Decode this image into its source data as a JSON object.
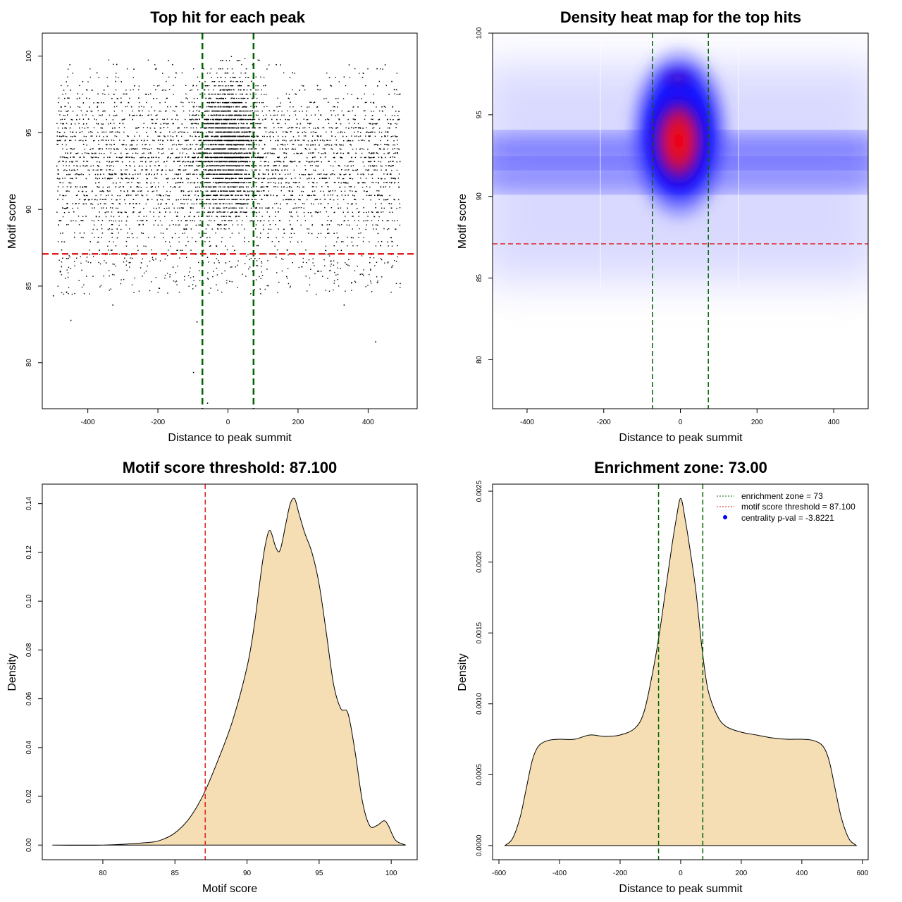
{
  "chart_data": [
    {
      "id": "p1",
      "type": "scatter",
      "title": "Top hit for each peak",
      "xlabel": "Distance to peak summit",
      "ylabel": "Motif score",
      "xlim": [
        -530,
        540
      ],
      "ylim": [
        77.0,
        101.5
      ],
      "xticks": [
        "-400",
        "-200",
        "0",
        "200",
        "400"
      ],
      "yticks": [
        "80",
        "85",
        "90",
        "95",
        "100"
      ],
      "grid": false,
      "points_description": "dense cloud of top hits; x uniform over [-490, 490], scores mostly 87-100, denser near distance 0",
      "sample_points": [
        {
          "x": -450,
          "y": 82.8
        },
        {
          "x": -90,
          "y": 82.7
        },
        {
          "x": -100,
          "y": 79.4
        },
        {
          "x": -60,
          "y": 77.4
        },
        {
          "x": 420,
          "y": 81.4
        },
        {
          "x": -330,
          "y": 83.8
        },
        {
          "x": 330,
          "y": 83.8
        },
        {
          "x": -500,
          "y": 84.4
        },
        {
          "x": 490,
          "y": 85.2
        }
      ],
      "reference_lines": [
        {
          "orientation": "vertical",
          "value": -73,
          "color": "#006400",
          "style": "dashed"
        },
        {
          "orientation": "vertical",
          "value": 73,
          "color": "#006400",
          "style": "dashed"
        },
        {
          "orientation": "horizontal",
          "value": 87.1,
          "color": "#dd2222",
          "style": "dashed"
        }
      ]
    },
    {
      "id": "p2",
      "type": "heatmap",
      "title": "Density heat map for the top hits",
      "xlabel": "Distance to peak summit",
      "ylabel": "Motif score",
      "xlim": [
        -490,
        490
      ],
      "ylim": [
        77.0,
        100.0
      ],
      "xticks": [
        "-400",
        "-200",
        "0",
        "200",
        "400"
      ],
      "yticks": [
        "80",
        "85",
        "90",
        "95",
        "100"
      ],
      "grid": false,
      "color_scale": [
        "#ffffff",
        "#0000ff",
        "#ff0000"
      ],
      "density_description": "white-to-blue background over scores 85-100 at all distances, bands near 91.5 and 93; strong red core near distance 0, score 93.5",
      "reference_lines": [
        {
          "orientation": "vertical",
          "value": -73,
          "color": "#006400",
          "style": "dashed"
        },
        {
          "orientation": "vertical",
          "value": 73,
          "color": "#006400",
          "style": "dashed"
        },
        {
          "orientation": "horizontal",
          "value": 87.1,
          "color": "#dd2222",
          "style": "dashed"
        }
      ]
    },
    {
      "id": "p3",
      "type": "area",
      "title": "Motif score threshold: 87.100",
      "xlabel": "Motif score",
      "ylabel": "Density",
      "xlim": [
        75.8,
        101.8
      ],
      "ylim": [
        -0.006,
        0.148
      ],
      "xticks": [
        "80",
        "85",
        "90",
        "95",
        "100"
      ],
      "yticks": [
        "0.00",
        "0.02",
        "0.04",
        "0.06",
        "0.08",
        "0.10",
        "0.12",
        "0.14"
      ],
      "grid": false,
      "fill": "#f5deb3",
      "x": [
        76.5,
        80,
        83,
        84,
        85,
        86,
        87,
        88,
        89,
        90,
        90.5,
        91,
        91.3,
        91.6,
        92,
        92.3,
        92.7,
        93,
        93.3,
        93.6,
        94,
        94.5,
        95,
        95.5,
        96,
        96.5,
        97,
        97.5,
        98,
        98.5,
        99,
        99.5,
        99.8,
        100.3,
        101
      ],
      "values": [
        0,
        0,
        0.001,
        0.002,
        0.005,
        0.011,
        0.021,
        0.035,
        0.051,
        0.073,
        0.09,
        0.113,
        0.124,
        0.129,
        0.122,
        0.121,
        0.132,
        0.14,
        0.142,
        0.136,
        0.128,
        0.12,
        0.107,
        0.087,
        0.066,
        0.056,
        0.054,
        0.038,
        0.018,
        0.008,
        0.008,
        0.01,
        0.008,
        0.002,
        0
      ],
      "reference_lines": [
        {
          "orientation": "vertical",
          "value": 87.1,
          "color": "#dd2222",
          "style": "dashed"
        }
      ]
    },
    {
      "id": "p4",
      "type": "area",
      "title": "Enrichment zone: 73.00",
      "xlabel": "Distance to peak summit",
      "ylabel": "Density",
      "xlim": [
        -621,
        619
      ],
      "ylim": [
        -0.0001,
        0.00255
      ],
      "xticks": [
        "-600",
        "-400",
        "-200",
        "0",
        "200",
        "400",
        "600"
      ],
      "yticks": [
        "0.0000",
        "0.0005",
        "0.0010",
        "0.0015",
        "0.0020",
        "0.0025"
      ],
      "grid": false,
      "fill": "#f5deb3",
      "x": [
        -580,
        -555,
        -530,
        -510,
        -490,
        -470,
        -440,
        -400,
        -350,
        -300,
        -250,
        -200,
        -150,
        -120,
        -90,
        -70,
        -50,
        -30,
        -15,
        0,
        15,
        30,
        50,
        70,
        90,
        120,
        150,
        200,
        250,
        300,
        350,
        400,
        440,
        470,
        490,
        510,
        530,
        555,
        580
      ],
      "values": [
        0,
        5e-05,
        0.0002,
        0.0004,
        0.0006,
        0.0007,
        0.00074,
        0.00075,
        0.00075,
        0.00078,
        0.00077,
        0.00078,
        0.00083,
        0.00095,
        0.00125,
        0.0015,
        0.0018,
        0.0021,
        0.0023,
        0.00245,
        0.0023,
        0.0021,
        0.0018,
        0.0014,
        0.0011,
        0.00092,
        0.00084,
        0.0008,
        0.00078,
        0.00076,
        0.00075,
        0.00075,
        0.00074,
        0.0007,
        0.0006,
        0.0004,
        0.0002,
        5e-05,
        0
      ],
      "reference_lines": [
        {
          "orientation": "vertical",
          "value": -73,
          "color": "#006400",
          "style": "dashed"
        },
        {
          "orientation": "vertical",
          "value": 73,
          "color": "#006400",
          "style": "dashed"
        }
      ],
      "legend": {
        "position": "top-right",
        "entries": [
          {
            "label": "enrichment zone = 73",
            "color": "#006400",
            "symbol": "dotted-line"
          },
          {
            "label": "motif score threshold = 87.100",
            "color": "#dd2222",
            "symbol": "dotted-line"
          },
          {
            "label": "centrality p-val = -3.8221",
            "color": "#0000ff",
            "symbol": "point"
          }
        ]
      }
    }
  ]
}
